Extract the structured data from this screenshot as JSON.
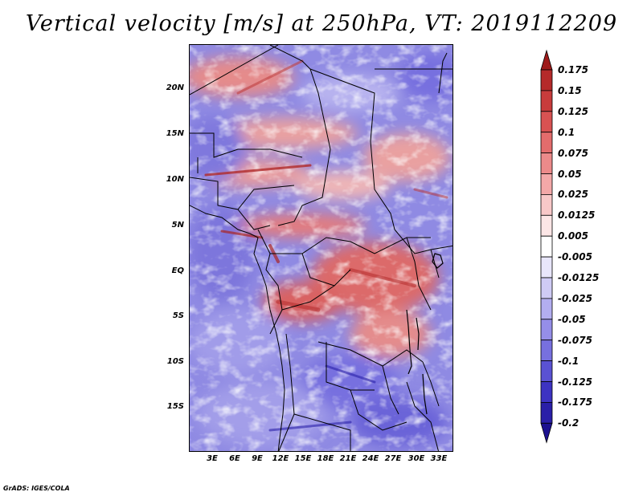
{
  "title": "Vertical velocity [m/s] at 250hPa, VT: 2019112209",
  "credit": "GrADS: IGES/COLA",
  "map": {
    "variable": "Vertical velocity",
    "units": "m/s",
    "level": "250hPa",
    "valid_time": "2019112209",
    "lon_range": [
      0,
      35
    ],
    "lat_range": [
      -20,
      25
    ],
    "lat_labels": [
      "20N",
      "15N",
      "10N",
      "5N",
      "EQ",
      "5S",
      "10S",
      "15S"
    ],
    "lon_labels": [
      "3E",
      "6E",
      "9E",
      "12E",
      "15E",
      "18E",
      "21E",
      "24E",
      "27E",
      "30E",
      "33E"
    ]
  },
  "colorbar": {
    "labels": [
      "0.175",
      "0.15",
      "0.125",
      "0.1",
      "0.075",
      "0.05",
      "0.025",
      "0.0125",
      "0.005",
      "-0.005",
      "-0.0125",
      "-0.025",
      "-0.05",
      "-0.075",
      "-0.1",
      "-0.125",
      "-0.175",
      "-0.2"
    ],
    "colors": [
      "#9e1a1a",
      "#b52a2a",
      "#c83c3c",
      "#d85252",
      "#e36c6c",
      "#ec8a8a",
      "#f3a8a8",
      "#f8c8c8",
      "#fce6e6",
      "#ffffff",
      "#e8e6fb",
      "#cfcbf5",
      "#b3aef0",
      "#958ee8",
      "#7770df",
      "#5a52d3",
      "#3d33c2",
      "#2a1fa8",
      "#1c1190"
    ]
  }
}
